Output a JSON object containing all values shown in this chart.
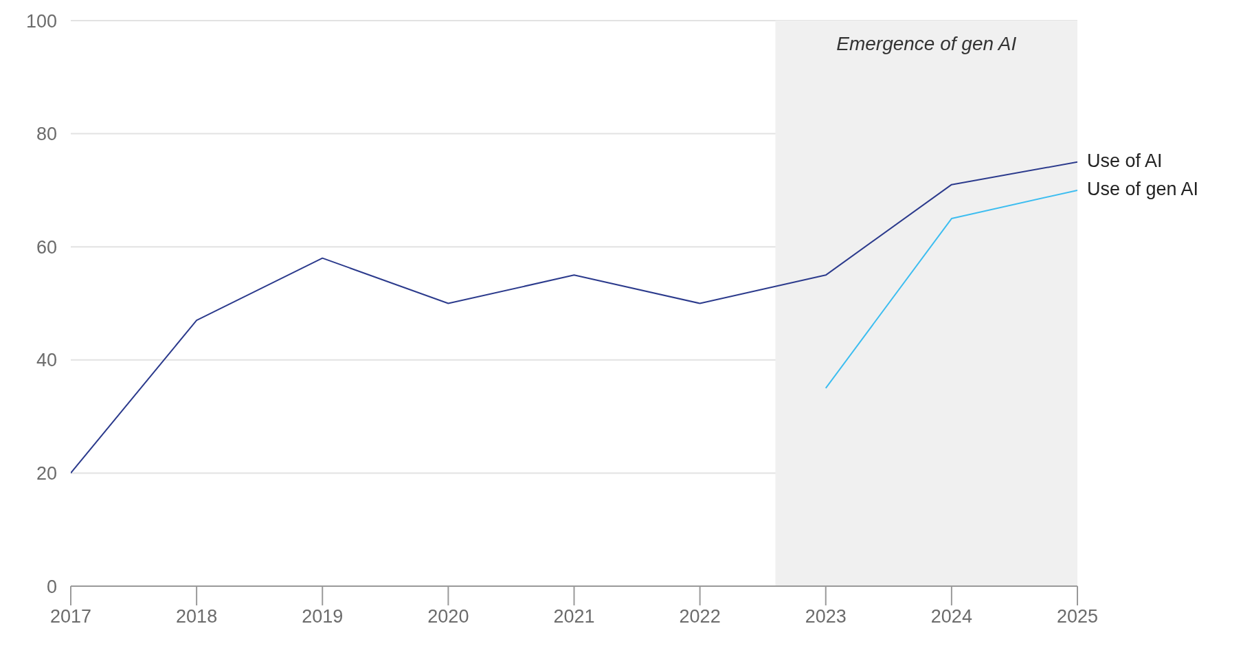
{
  "chart_data": {
    "type": "line",
    "x": [
      2017,
      2018,
      2019,
      2020,
      2021,
      2022,
      2023,
      2024,
      2025
    ],
    "series": [
      {
        "name": "Use of AI",
        "color": "#2b3a8c",
        "values": [
          20,
          47,
          58,
          50,
          55,
          50,
          55,
          71,
          75
        ]
      },
      {
        "name": "Use of gen AI",
        "color": "#3cbdf0",
        "values": [
          null,
          null,
          null,
          null,
          null,
          null,
          35,
          65,
          70
        ]
      }
    ],
    "xlim": [
      2017,
      2025
    ],
    "xticks": [
      2017,
      2018,
      2019,
      2020,
      2021,
      2022,
      2023,
      2024,
      2025
    ],
    "ylim": [
      0,
      100
    ],
    "yticks": [
      0,
      20,
      40,
      60,
      80,
      100
    ],
    "grid": "y",
    "marker": "none",
    "line_style": "solid",
    "bands": [
      {
        "axis": "x",
        "from": 2022.6,
        "to": 2025,
        "label": "Emergence of gen AI",
        "color": "#f0f0f0"
      }
    ]
  }
}
